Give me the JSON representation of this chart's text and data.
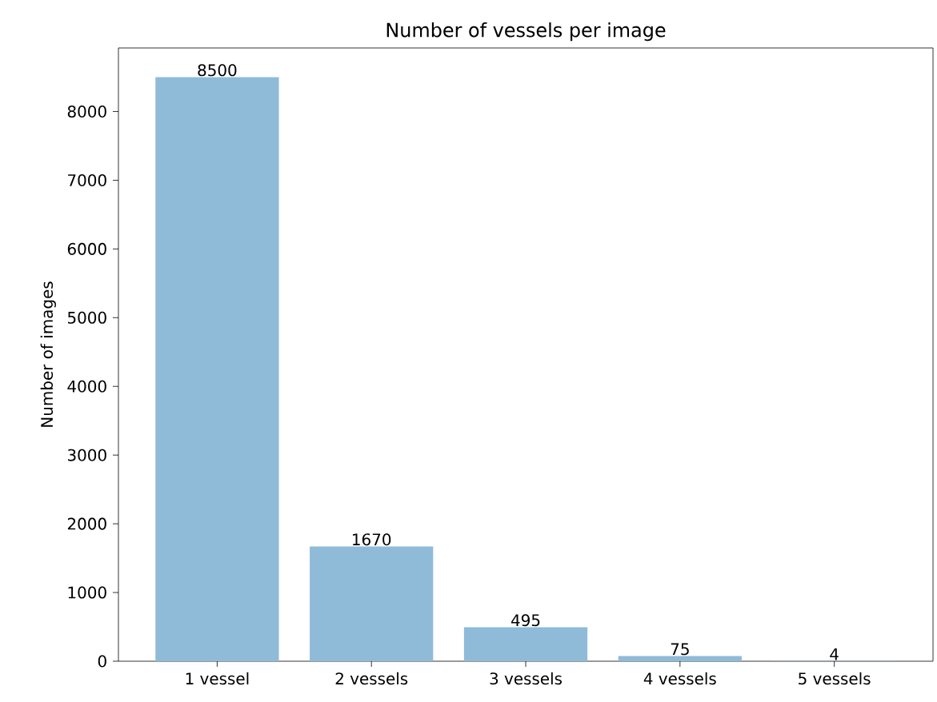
{
  "chart_data": {
    "type": "bar",
    "title": "Number of vessels per image",
    "ylabel": "Number of images",
    "categories": [
      "1 vessel",
      "2 vessels",
      "3 vessels",
      "4 vessels",
      "5 vessels"
    ],
    "values": [
      8500,
      1670,
      495,
      75,
      4
    ],
    "color": "#8fbbd9",
    "ylim": [
      0,
      8925
    ],
    "yticks": [
      0,
      1000,
      2000,
      3000,
      4000,
      5000,
      6000,
      7000,
      8000
    ],
    "data_labels": true
  }
}
